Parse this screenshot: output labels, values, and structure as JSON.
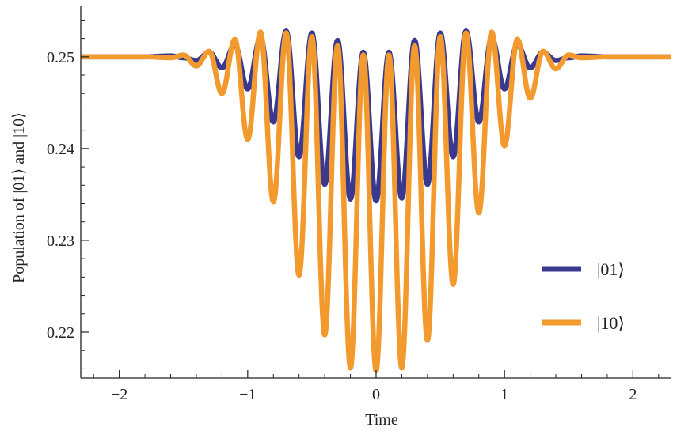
{
  "chart_data": {
    "type": "line",
    "title": "",
    "xlabel": "Time",
    "ylabel": "Population of |01⟩ and |10⟩",
    "xlim": [
      -2.3,
      2.3
    ],
    "ylim": [
      0.215,
      0.2555
    ],
    "xticks": [
      -2,
      -1,
      0,
      1,
      2
    ],
    "xtick_labels": [
      "−2",
      "−1",
      "0",
      "1",
      "2"
    ],
    "yticks": [
      0.22,
      0.23,
      0.24,
      0.25
    ],
    "ytick_labels": [
      "0.22",
      "0.23",
      "0.24",
      "0.25"
    ],
    "grid": false,
    "legend_position": "right",
    "x": [
      -2.3,
      -2.0,
      -1.8,
      -1.6,
      -1.5,
      -1.4,
      -1.3,
      -1.2,
      -1.1,
      -1.0,
      -0.9,
      -0.8,
      -0.7,
      -0.6,
      -0.5,
      -0.4,
      -0.3,
      -0.2,
      -0.1,
      0.0,
      0.1,
      0.2,
      0.3,
      0.4,
      0.5,
      0.6,
      0.7,
      0.8,
      0.9,
      1.0,
      1.1,
      1.2,
      1.3,
      1.4,
      1.5,
      1.6,
      1.8,
      2.0,
      2.3
    ],
    "series": [
      {
        "name": "|01⟩",
        "color": "#38398f",
        "values": [
          0.25,
          0.25,
          0.25,
          0.2501,
          0.2499,
          0.2496,
          0.2505,
          0.2488,
          0.2513,
          0.2465,
          0.2521,
          0.2429,
          0.2528,
          0.2391,
          0.2526,
          0.2361,
          0.2518,
          0.2345,
          0.2505,
          0.2343,
          0.2505,
          0.2346,
          0.2518,
          0.2361,
          0.2526,
          0.2391,
          0.2528,
          0.2429,
          0.2521,
          0.2465,
          0.2513,
          0.2488,
          0.2505,
          0.2496,
          0.2499,
          0.2501,
          0.25,
          0.25,
          0.25
        ]
      },
      {
        "name": "|10⟩",
        "color": "#f39a2f",
        "values": [
          0.25,
          0.25,
          0.25,
          0.2499,
          0.2502,
          0.249,
          0.2506,
          0.246,
          0.2519,
          0.241,
          0.2527,
          0.2342,
          0.2526,
          0.2262,
          0.2522,
          0.2197,
          0.2512,
          0.2161,
          0.2502,
          0.2158,
          0.2502,
          0.2161,
          0.2512,
          0.2191,
          0.2522,
          0.2252,
          0.2526,
          0.233,
          0.2527,
          0.2403,
          0.2519,
          0.2455,
          0.2506,
          0.2487,
          0.2502,
          0.2499,
          0.25,
          0.25,
          0.25
        ]
      }
    ]
  }
}
